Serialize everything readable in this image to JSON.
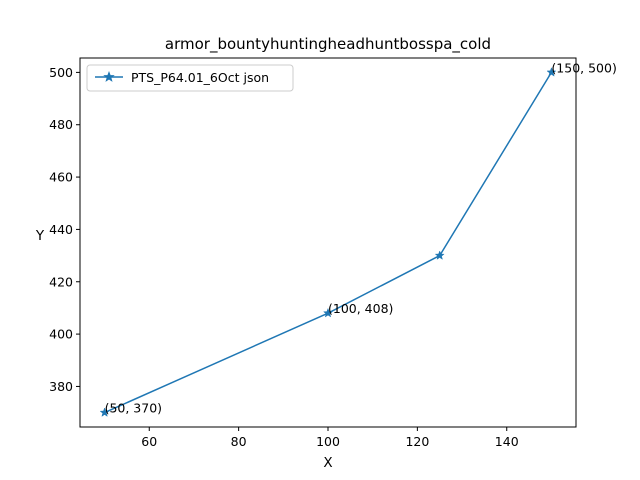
{
  "chart_data": {
    "type": "line",
    "title": "armor_bountyhuntingheadhuntbosspa_cold",
    "xlabel": "X",
    "ylabel": "Y",
    "xlim": [
      44.5,
      155.5
    ],
    "ylim": [
      364.5,
      505.5
    ],
    "xticks": [
      60,
      80,
      100,
      120,
      140
    ],
    "yticks": [
      380,
      400,
      420,
      440,
      460,
      480,
      500
    ],
    "grid": false,
    "legend_position": "upper left",
    "marker": "star",
    "line_color": "#1f77b4",
    "series": [
      {
        "name": "PTS_P64.01_6Oct json",
        "x": [
          50,
          100,
          125,
          150
        ],
        "y": [
          370,
          408,
          430,
          500
        ]
      }
    ],
    "annotations": [
      {
        "text": "(50, 370)",
        "x": 50,
        "y": 370
      },
      {
        "text": "(100, 408)",
        "x": 100,
        "y": 408
      },
      {
        "text": "(150, 500)",
        "x": 150,
        "y": 500
      }
    ]
  }
}
